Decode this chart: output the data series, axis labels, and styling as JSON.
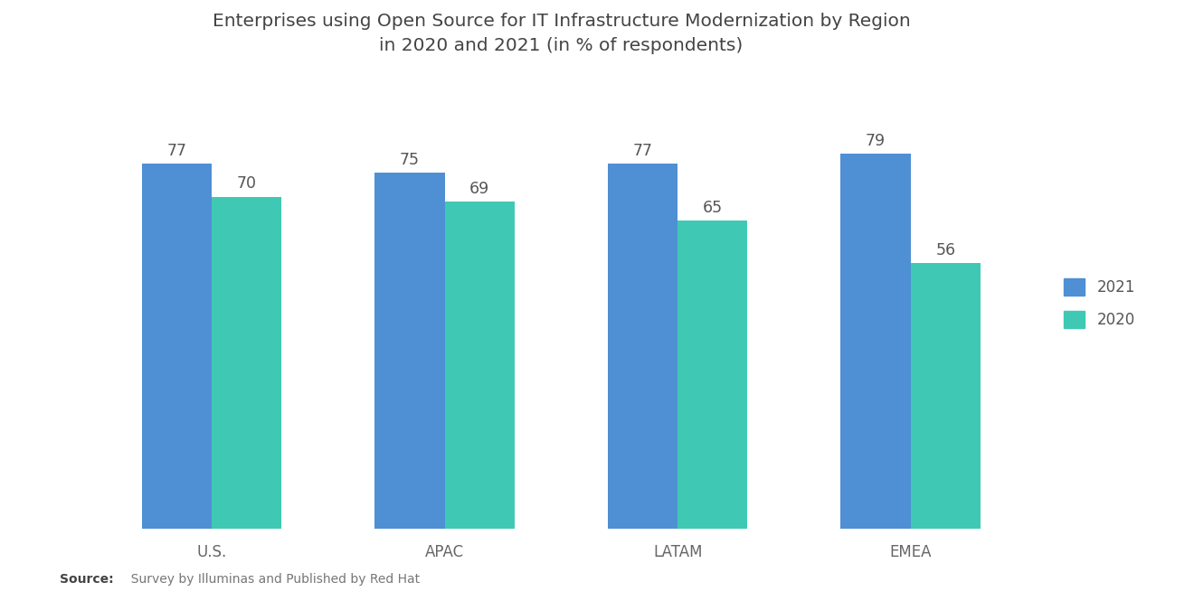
{
  "title": "Enterprises using Open Source for IT Infrastructure Modernization by Region\nin 2020 and 2021 (in % of respondents)",
  "categories": [
    "U.S.",
    "APAC",
    "LATAM",
    "EMEA"
  ],
  "values_2021": [
    77,
    75,
    77,
    79
  ],
  "values_2020": [
    70,
    69,
    65,
    56
  ],
  "color_2021": "#4f8fd4",
  "color_2020": "#3fc9b4",
  "background_color": "#ffffff",
  "legend_labels": [
    "2021",
    "2020"
  ],
  "source_bold": "Source:",
  "source_rest": "  Survey by Illuminas and Published by Red Hat",
  "ylim": [
    0,
    95
  ],
  "bar_width": 0.3,
  "title_fontsize": 14.5,
  "label_fontsize": 12,
  "tick_fontsize": 12,
  "value_fontsize": 12.5
}
